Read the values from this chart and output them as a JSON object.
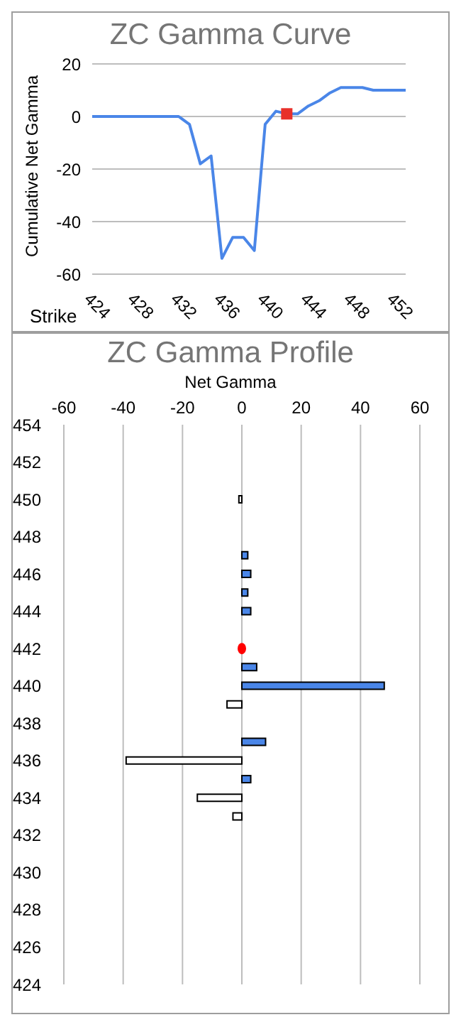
{
  "chart_data": [
    {
      "type": "line",
      "title": "ZC Gamma Curve",
      "xlabel": "Strike",
      "ylabel": "Cumulative Net Gamma",
      "xlim": [
        424,
        453
      ],
      "xticks": [
        424,
        428,
        432,
        436,
        440,
        444,
        448,
        452
      ],
      "ylim": [
        -60,
        20
      ],
      "yticks": [
        -60,
        -40,
        -20,
        0,
        20
      ],
      "grid": "y",
      "x": [
        424,
        425,
        426,
        427,
        428,
        429,
        430,
        431,
        432,
        433,
        434,
        435,
        436,
        437,
        438,
        439,
        440,
        441,
        442,
        443,
        444,
        445,
        446,
        447,
        448,
        449,
        450,
        451,
        452,
        453
      ],
      "series": [
        {
          "type": "line",
          "color": "#4a86e8",
          "values": [
            0,
            0,
            0,
            0,
            0,
            0,
            0,
            0,
            0,
            -3,
            -18,
            -15,
            -54,
            -46,
            -46,
            -51,
            -3,
            2,
            1,
            1,
            4,
            6,
            9,
            11,
            11,
            11,
            10,
            10,
            10,
            10
          ]
        },
        {
          "type": "scatter",
          "color": "#e8302a",
          "marker": "square",
          "x": [
            442
          ],
          "values": [
            1
          ]
        }
      ]
    },
    {
      "type": "bar",
      "orientation": "horizontal",
      "title": "ZC Gamma Profile",
      "xlabel": "Net Gamma",
      "xlim": [
        -60,
        60
      ],
      "xticks": [
        -60,
        -40,
        -20,
        0,
        20,
        40,
        60
      ],
      "ylim": [
        424,
        454
      ],
      "yticks": [
        424,
        426,
        428,
        430,
        432,
        434,
        436,
        438,
        440,
        442,
        444,
        446,
        448,
        450,
        452,
        454
      ],
      "grid": "x",
      "x": [
        433,
        434,
        435,
        436,
        437,
        439,
        440,
        441,
        442,
        444,
        445,
        446,
        447,
        450
      ],
      "series": [
        {
          "type": "bar",
          "values": [
            -3,
            -15,
            3,
            -39,
            8,
            -5,
            48,
            5,
            null,
            3,
            2,
            3,
            2,
            -1
          ],
          "colors": [
            "#ffffff",
            "#ffffff",
            "#4a86e8",
            "#ffffff",
            "#4a86e8",
            "#ffffff",
            "#4a86e8",
            "#4a86e8",
            "#ffffff",
            "#4a86e8",
            "#4a86e8",
            "#4a86e8",
            "#4a86e8",
            "#ffffff"
          ]
        },
        {
          "type": "scatter",
          "color": "#ff0000",
          "marker": "circle",
          "x": [
            442
          ],
          "values": [
            0
          ]
        }
      ]
    }
  ]
}
